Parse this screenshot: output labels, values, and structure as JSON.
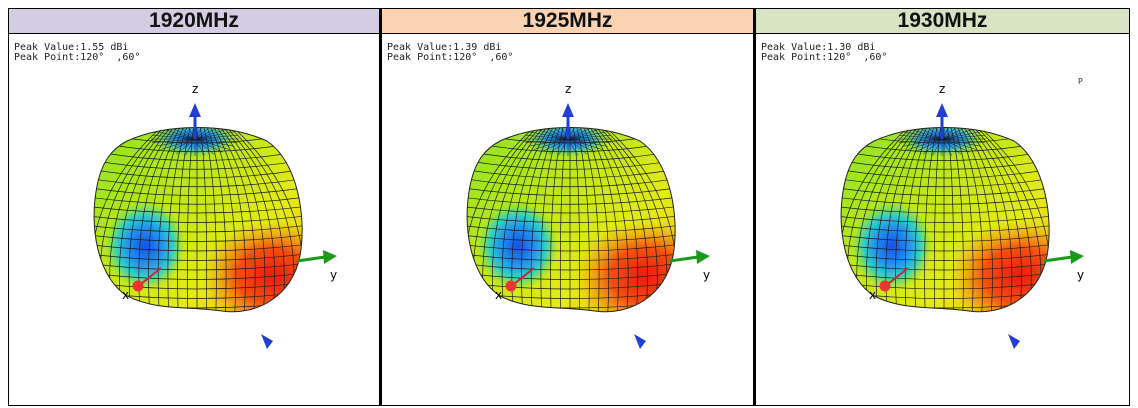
{
  "panels": [
    {
      "frequency": "1920MHz",
      "header_color": "#d4cce2",
      "peak_value_line": "Peak Value:1.55 dBi",
      "peak_point_line": "Peak Point:120°  ,60°",
      "corner_mark": ""
    },
    {
      "frequency": "1925MHz",
      "header_color": "#fbd3b3",
      "peak_value_line": "Peak Value:1.39 dBi",
      "peak_point_line": "Peak Point:120°  ,60°",
      "corner_mark": ""
    },
    {
      "frequency": "1930MHz",
      "header_color": "#d7e3c2",
      "peak_value_line": "Peak Value:1.30 dBi",
      "peak_point_line": "Peak Point:120°  ,60°",
      "corner_mark": "P"
    }
  ],
  "axes": {
    "z": "z",
    "y": "y",
    "x": "x"
  },
  "colors": {
    "z_axis": "#1f3fd6",
    "y_axis": "#1a9a1a",
    "x_axis": "#cc2a2a",
    "grid": "#1a1a1a"
  }
}
